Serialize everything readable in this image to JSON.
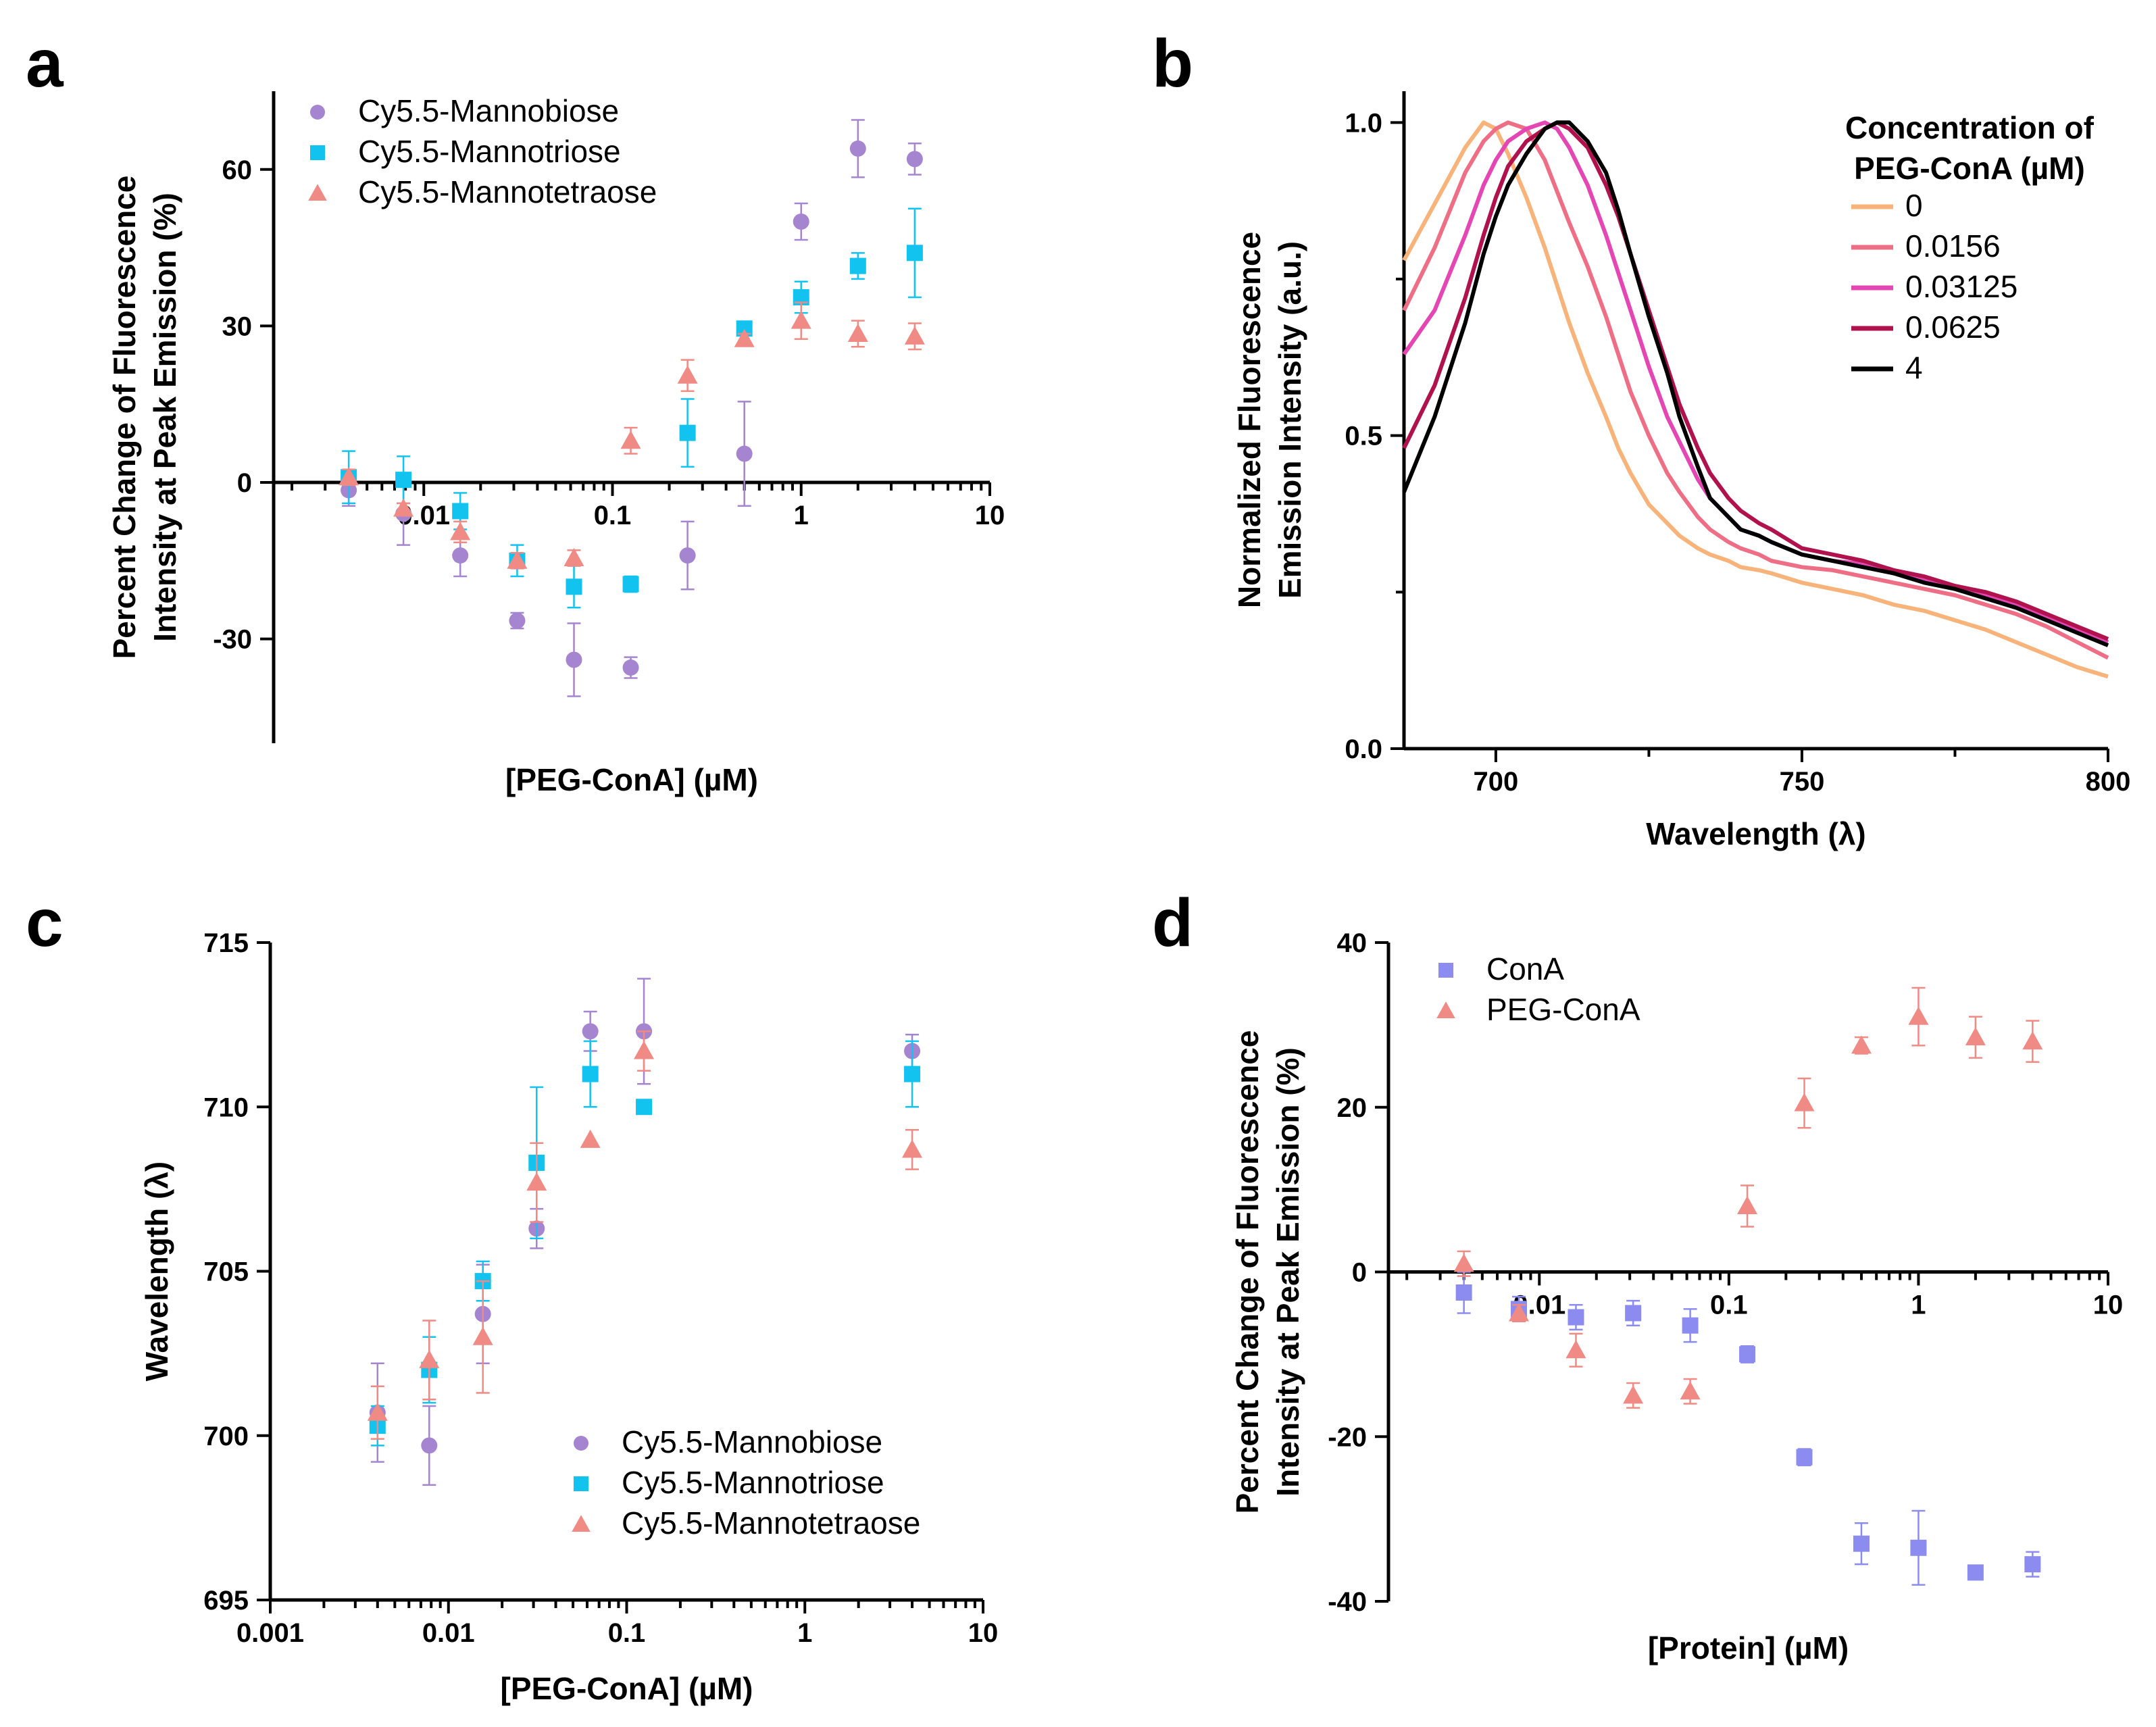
{
  "colors": {
    "mannobiose": "#a585cf",
    "mannotriose": "#13c3ef",
    "mannotetraose": "#f08a84",
    "cona": "#8c8cf0",
    "peg_cona": "#f08a84",
    "spec_0": "#f7b37a",
    "spec_0_0156": "#ee6f85",
    "spec_0_03125": "#e447b3",
    "spec_0_0625": "#b0124d",
    "spec_4": "#000000"
  },
  "panels": {
    "a": {
      "letter": "a"
    },
    "b": {
      "letter": "b"
    },
    "c": {
      "letter": "c"
    },
    "d": {
      "letter": "d"
    }
  },
  "chart_data": [
    {
      "id": "a",
      "type": "scatter",
      "title": "",
      "xlabel": "[PEG-ConA] (µM)",
      "ylabel_lines": [
        "Percent Change of Fluorescence",
        "Intensity at Peak Emission (%)"
      ],
      "xscale": "log",
      "xlim": [
        0.0016,
        10
      ],
      "ylim": [
        -50,
        75
      ],
      "x_axis_at_y": 0,
      "x_ticks": [
        0.01,
        0.1,
        1,
        10
      ],
      "x_tick_labels": [
        "0.01",
        "0.1",
        "1",
        "10"
      ],
      "y_ticks": [
        -30,
        0,
        30,
        60
      ],
      "y_tick_labels": [
        "-30",
        "0",
        "30",
        "60"
      ],
      "legend_position": "top-left",
      "series": [
        {
          "name": "Cy5.5-Mannobiose",
          "marker": "circle",
          "color_key": "mannobiose",
          "x": [
            0.004,
            0.0078,
            0.0156,
            0.03125,
            0.0625,
            0.125,
            0.25,
            0.5,
            1,
            2,
            4
          ],
          "y": [
            -1.5,
            -6,
            -14,
            -26.5,
            -34,
            -35.5,
            -14,
            5.5,
            50,
            64,
            62
          ],
          "err": [
            3,
            6,
            4,
            1.5,
            7,
            2,
            6.5,
            10,
            3.5,
            5.5,
            3
          ]
        },
        {
          "name": "Cy5.5-Mannotriose",
          "marker": "square",
          "color_key": "mannotriose",
          "x": [
            0.004,
            0.0078,
            0.0156,
            0.03125,
            0.0625,
            0.125,
            0.25,
            0.5,
            1,
            2,
            4
          ],
          "y": [
            1,
            0.5,
            -5.5,
            -15,
            -20,
            -19.5,
            9.5,
            29.5,
            35.5,
            41.5,
            44
          ],
          "err": [
            5,
            4.5,
            3.5,
            3,
            4,
            1.5,
            6.5,
            1,
            3,
            2.5,
            8.5
          ]
        },
        {
          "name": "Cy5.5-Mannotetraose",
          "marker": "triangle",
          "color_key": "mannotetraose",
          "x": [
            0.004,
            0.0078,
            0.0156,
            0.03125,
            0.0625,
            0.125,
            0.25,
            0.5,
            1,
            2,
            4
          ],
          "y": [
            1,
            -5,
            -9.5,
            -15,
            -14.5,
            8,
            20.5,
            27.5,
            31,
            28.5,
            28
          ],
          "err": [
            1.5,
            1,
            2,
            1.5,
            1.5,
            2.5,
            3,
            1,
            3.5,
            2.5,
            2.5
          ]
        }
      ]
    },
    {
      "id": "b",
      "type": "line",
      "title": "",
      "xlabel": "Wavelength (λ)",
      "ylabel_lines": [
        "Normalized Fluorescence",
        "Emission Intensity (a.u.)"
      ],
      "xlim": [
        685,
        800
      ],
      "ylim": [
        0,
        1.05
      ],
      "x_ticks": [
        700,
        750,
        800
      ],
      "x_tick_labels": [
        "700",
        "750",
        "800"
      ],
      "x_minor_ticks": [
        725,
        775
      ],
      "y_ticks": [
        0,
        0.5,
        1
      ],
      "y_tick_labels": [
        "0.0",
        "0.5",
        "1.0"
      ],
      "y_minor_ticks": [
        0.25,
        0.75
      ],
      "legend_title_lines": [
        "Concentration of",
        "PEG-ConA (µM)"
      ],
      "legend_position": "top-right",
      "x": [
        685,
        690,
        695,
        698,
        700,
        702,
        705,
        708,
        710,
        712,
        715,
        718,
        720,
        722,
        725,
        728,
        730,
        733,
        735,
        738,
        740,
        743,
        745,
        750,
        755,
        760,
        765,
        770,
        775,
        780,
        785,
        790,
        795,
        800
      ],
      "series": [
        {
          "name": "0",
          "color_key": "spec_0",
          "y": [
            0.78,
            0.87,
            0.96,
            1.0,
            0.99,
            0.95,
            0.88,
            0.8,
            0.74,
            0.68,
            0.6,
            0.53,
            0.48,
            0.44,
            0.39,
            0.36,
            0.34,
            0.32,
            0.31,
            0.3,
            0.29,
            0.285,
            0.28,
            0.265,
            0.255,
            0.245,
            0.23,
            0.22,
            0.205,
            0.19,
            0.17,
            0.15,
            0.13,
            0.115
          ]
        },
        {
          "name": "0.0156",
          "color_key": "spec_0_0156",
          "y": [
            0.7,
            0.8,
            0.92,
            0.97,
            0.99,
            1.0,
            0.99,
            0.94,
            0.89,
            0.84,
            0.77,
            0.69,
            0.63,
            0.57,
            0.5,
            0.44,
            0.41,
            0.37,
            0.35,
            0.33,
            0.32,
            0.31,
            0.3,
            0.29,
            0.285,
            0.275,
            0.265,
            0.255,
            0.245,
            0.23,
            0.215,
            0.195,
            0.17,
            0.145
          ]
        },
        {
          "name": "0.03125",
          "color_key": "spec_0_03125",
          "y": [
            0.63,
            0.7,
            0.82,
            0.9,
            0.94,
            0.97,
            0.99,
            1.0,
            0.99,
            0.96,
            0.9,
            0.82,
            0.76,
            0.7,
            0.61,
            0.53,
            0.49,
            0.43,
            0.4,
            0.37,
            0.35,
            0.34,
            0.33,
            0.31,
            0.3,
            0.295,
            0.28,
            0.27,
            0.255,
            0.245,
            0.23,
            0.21,
            0.19,
            0.17
          ]
        },
        {
          "name": "0.0625",
          "color_key": "spec_0_0625",
          "y": [
            0.48,
            0.58,
            0.72,
            0.82,
            0.88,
            0.93,
            0.97,
            0.99,
            1.0,
            0.99,
            0.96,
            0.9,
            0.85,
            0.79,
            0.7,
            0.61,
            0.55,
            0.48,
            0.44,
            0.4,
            0.38,
            0.36,
            0.35,
            0.32,
            0.31,
            0.3,
            0.285,
            0.275,
            0.26,
            0.25,
            0.235,
            0.215,
            0.195,
            0.175
          ]
        },
        {
          "name": "4",
          "color_key": "spec_4",
          "y": [
            0.41,
            0.53,
            0.68,
            0.79,
            0.85,
            0.9,
            0.95,
            0.99,
            1.0,
            1.0,
            0.97,
            0.92,
            0.86,
            0.79,
            0.69,
            0.6,
            0.53,
            0.45,
            0.4,
            0.37,
            0.35,
            0.34,
            0.33,
            0.31,
            0.3,
            0.29,
            0.28,
            0.265,
            0.255,
            0.24,
            0.225,
            0.205,
            0.185,
            0.165
          ]
        }
      ]
    },
    {
      "id": "c",
      "type": "scatter",
      "title": "",
      "xlabel": "[PEG-ConA] (µM)",
      "ylabel_lines": [
        "Wavelength (λ)"
      ],
      "xscale": "log",
      "xlim": [
        0.001,
        10
      ],
      "ylim": [
        695,
        715
      ],
      "x_ticks": [
        0.001,
        0.01,
        0.1,
        1,
        10
      ],
      "x_tick_labels": [
        "0.001",
        "0.01",
        "0.1",
        "1",
        "10"
      ],
      "y_ticks": [
        695,
        700,
        705,
        710,
        715
      ],
      "y_tick_labels": [
        "695",
        "700",
        "705",
        "710",
        "715"
      ],
      "legend_position": "bottom-right",
      "series": [
        {
          "name": "Cy5.5-Mannobiose",
          "marker": "circle",
          "color_key": "mannobiose",
          "x": [
            0.004,
            0.0078,
            0.0156,
            0.03125,
            0.0625,
            0.125,
            4
          ],
          "y": [
            700.7,
            699.7,
            703.7,
            706.3,
            712.3,
            712.3,
            711.7
          ],
          "err": [
            1.5,
            1.2,
            1.5,
            0.6,
            0.6,
            1.6,
            0.5
          ]
        },
        {
          "name": "Cy5.5-Mannotriose",
          "marker": "square",
          "color_key": "mannotriose",
          "x": [
            0.004,
            0.0078,
            0.0156,
            0.03125,
            0.0625,
            0.125,
            4
          ],
          "y": [
            700.3,
            702.0,
            704.7,
            708.3,
            711.0,
            710.0,
            711.0
          ],
          "err": [
            0.6,
            1.0,
            0.6,
            2.3,
            1.0,
            0,
            1.0
          ]
        },
        {
          "name": "Cy5.5-Mannotetraose",
          "marker": "triangle",
          "color_key": "mannotetraose",
          "x": [
            0.004,
            0.0078,
            0.0156,
            0.03125,
            0.0625,
            0.125,
            4
          ],
          "y": [
            700.7,
            702.3,
            703.0,
            707.7,
            709.0,
            711.7,
            708.7
          ],
          "err": [
            0.8,
            1.2,
            1.7,
            1.2,
            0,
            0.6,
            0.6
          ]
        }
      ]
    },
    {
      "id": "d",
      "type": "scatter",
      "title": "",
      "xlabel": "[Protein] (µM)",
      "ylabel_lines": [
        "Percent Change of Fluorescence",
        "Intensity at Peak Emission (%)"
      ],
      "xscale": "log",
      "xlim": [
        0.0016,
        10
      ],
      "ylim": [
        -40,
        40
      ],
      "x_axis_at_y": 0,
      "x_ticks": [
        0.01,
        0.1,
        1,
        10
      ],
      "x_tick_labels": [
        "0.01",
        "0.1",
        "1",
        "10"
      ],
      "y_ticks": [
        -40,
        -20,
        0,
        20,
        40
      ],
      "y_tick_labels": [
        "-40",
        "-20",
        "0",
        "20",
        "40"
      ],
      "legend_position": "top-left",
      "series": [
        {
          "name": "ConA",
          "marker": "square",
          "color_key": "cona",
          "x": [
            0.004,
            0.0078,
            0.0156,
            0.03125,
            0.0625,
            0.125,
            0.25,
            0.5,
            1,
            2,
            4
          ],
          "y": [
            -2.5,
            -4.5,
            -5.5,
            -5,
            -6.5,
            -10,
            -22.5,
            -33,
            -33.5,
            -36.5,
            -35.5
          ],
          "err": [
            2.5,
            1.5,
            1.5,
            1.5,
            2,
            1,
            1,
            2.5,
            4.5,
            0.5,
            1.5
          ]
        },
        {
          "name": "PEG-ConA",
          "marker": "triangle",
          "color_key": "peg_cona",
          "x": [
            0.004,
            0.0078,
            0.0156,
            0.03125,
            0.0625,
            0.125,
            0.25,
            0.5,
            1,
            2,
            4
          ],
          "y": [
            1,
            -5,
            -9.5,
            -15,
            -14.5,
            8,
            20.5,
            27.5,
            31,
            28.5,
            28
          ],
          "err": [
            1.5,
            1,
            2,
            1.5,
            1.5,
            2.5,
            3,
            1,
            3.5,
            2.5,
            2.5
          ]
        }
      ]
    }
  ]
}
